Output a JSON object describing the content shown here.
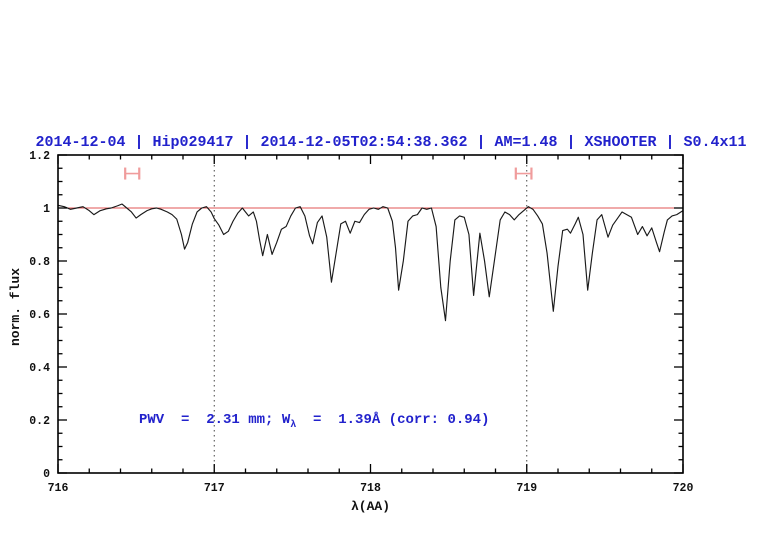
{
  "header": {
    "title": "2014-12-04 | Hip029417 | 2014-12-05T02:54:38.362 | AM=1.48 | XSHOOTER | S0.4x11"
  },
  "annotation": {
    "part1": "PWV  =  2.31 mm; W",
    "subscript": "λ",
    "part2": "  =  1.39Å (corr: 0.94)"
  },
  "colors": {
    "title_blue": "#2222cc",
    "continuum_red": "#e05555",
    "marker_pink": "#f09c9c",
    "spectrum_black": "#1a1a1a",
    "dotted_gray": "#444444",
    "frame_black": "#000000"
  },
  "chart_data": {
    "type": "line",
    "title": "2014-12-04 | Hip029417 | 2014-12-05T02:54:38.362 | AM=1.48 | XSHOOTER | S0.4x11",
    "xlabel": "λ(AA)",
    "ylabel": "norm. flux",
    "xlim": [
      716,
      720
    ],
    "ylim": [
      0,
      1.2
    ],
    "grid": false,
    "x_major_ticks": [
      716,
      717,
      718,
      719,
      720
    ],
    "x_tick_labels": [
      "716",
      "717",
      "718",
      "719",
      "720"
    ],
    "x_minor_step": 0.2,
    "y_major_ticks": [
      0,
      0.2,
      0.4,
      0.6,
      0.8,
      1,
      1.2
    ],
    "y_tick_labels": [
      "0",
      "0.2",
      "0.4",
      "0.6",
      "0.8",
      "1",
      "1.2"
    ],
    "y_minor_step": 0.05,
    "dotted_vlines": [
      717,
      719
    ],
    "continuum_level": 1.0,
    "telluric_band_markers": [
      {
        "x_start": 716.43,
        "x_end": 716.52,
        "y": 1.13
      },
      {
        "x_start": 718.93,
        "x_end": 719.03,
        "y": 1.13
      }
    ],
    "series": [
      {
        "name": "normalized-spectrum",
        "points": [
          [
            716.0,
            1.01
          ],
          [
            716.04,
            1.005
          ],
          [
            716.08,
            0.995
          ],
          [
            716.12,
            1.0
          ],
          [
            716.16,
            1.005
          ],
          [
            716.2,
            0.99
          ],
          [
            716.23,
            0.975
          ],
          [
            716.27,
            0.99
          ],
          [
            716.31,
            0.997
          ],
          [
            716.34,
            1.0
          ],
          [
            716.38,
            1.008
          ],
          [
            716.41,
            1.015
          ],
          [
            716.44,
            1.0
          ],
          [
            716.47,
            0.985
          ],
          [
            716.5,
            0.962
          ],
          [
            716.53,
            0.975
          ],
          [
            716.57,
            0.99
          ],
          [
            716.6,
            0.997
          ],
          [
            716.63,
            1.0
          ],
          [
            716.66,
            0.995
          ],
          [
            716.7,
            0.985
          ],
          [
            716.73,
            0.975
          ],
          [
            716.76,
            0.958
          ],
          [
            716.79,
            0.9
          ],
          [
            716.81,
            0.845
          ],
          [
            716.83,
            0.87
          ],
          [
            716.86,
            0.94
          ],
          [
            716.89,
            0.985
          ],
          [
            716.92,
            1.0
          ],
          [
            716.95,
            1.005
          ],
          [
            716.98,
            0.985
          ],
          [
            717.0,
            0.96
          ],
          [
            717.03,
            0.935
          ],
          [
            717.06,
            0.9
          ],
          [
            717.09,
            0.912
          ],
          [
            717.12,
            0.95
          ],
          [
            717.15,
            0.98
          ],
          [
            717.18,
            1.0
          ],
          [
            717.2,
            0.985
          ],
          [
            717.22,
            0.97
          ],
          [
            717.25,
            0.985
          ],
          [
            717.27,
            0.95
          ],
          [
            717.29,
            0.88
          ],
          [
            717.31,
            0.82
          ],
          [
            717.34,
            0.9
          ],
          [
            717.37,
            0.825
          ],
          [
            717.4,
            0.87
          ],
          [
            717.43,
            0.92
          ],
          [
            717.46,
            0.93
          ],
          [
            717.49,
            0.97
          ],
          [
            717.52,
            1.0
          ],
          [
            717.55,
            1.005
          ],
          [
            717.58,
            0.97
          ],
          [
            717.61,
            0.895
          ],
          [
            717.63,
            0.865
          ],
          [
            717.66,
            0.945
          ],
          [
            717.69,
            0.97
          ],
          [
            717.72,
            0.89
          ],
          [
            717.75,
            0.72
          ],
          [
            717.78,
            0.83
          ],
          [
            717.81,
            0.94
          ],
          [
            717.84,
            0.95
          ],
          [
            717.87,
            0.905
          ],
          [
            717.9,
            0.95
          ],
          [
            717.93,
            0.945
          ],
          [
            717.96,
            0.975
          ],
          [
            717.99,
            0.995
          ],
          [
            718.02,
            1.0
          ],
          [
            718.05,
            0.995
          ],
          [
            718.08,
            1.005
          ],
          [
            718.11,
            1.0
          ],
          [
            718.14,
            0.95
          ],
          [
            718.16,
            0.85
          ],
          [
            718.18,
            0.69
          ],
          [
            718.21,
            0.8
          ],
          [
            718.24,
            0.95
          ],
          [
            718.27,
            0.97
          ],
          [
            718.3,
            0.975
          ],
          [
            718.33,
            1.0
          ],
          [
            718.36,
            0.995
          ],
          [
            718.39,
            1.0
          ],
          [
            718.42,
            0.93
          ],
          [
            718.45,
            0.7
          ],
          [
            718.48,
            0.575
          ],
          [
            718.51,
            0.8
          ],
          [
            718.54,
            0.955
          ],
          [
            718.57,
            0.97
          ],
          [
            718.6,
            0.965
          ],
          [
            718.63,
            0.9
          ],
          [
            718.66,
            0.67
          ],
          [
            718.7,
            0.905
          ],
          [
            718.73,
            0.8
          ],
          [
            718.76,
            0.665
          ],
          [
            718.8,
            0.83
          ],
          [
            718.83,
            0.955
          ],
          [
            718.86,
            0.985
          ],
          [
            718.89,
            0.975
          ],
          [
            718.92,
            0.955
          ],
          [
            718.95,
            0.975
          ],
          [
            718.98,
            0.99
          ],
          [
            719.01,
            1.005
          ],
          [
            719.04,
            0.995
          ],
          [
            719.07,
            0.97
          ],
          [
            719.1,
            0.94
          ],
          [
            719.13,
            0.83
          ],
          [
            719.17,
            0.61
          ],
          [
            719.2,
            0.78
          ],
          [
            719.23,
            0.915
          ],
          [
            719.26,
            0.92
          ],
          [
            719.28,
            0.905
          ],
          [
            719.31,
            0.94
          ],
          [
            719.33,
            0.965
          ],
          [
            719.36,
            0.9
          ],
          [
            719.39,
            0.69
          ],
          [
            719.42,
            0.83
          ],
          [
            719.45,
            0.955
          ],
          [
            719.48,
            0.975
          ],
          [
            719.52,
            0.89
          ],
          [
            719.55,
            0.935
          ],
          [
            719.58,
            0.96
          ],
          [
            719.61,
            0.985
          ],
          [
            719.64,
            0.975
          ],
          [
            719.67,
            0.965
          ],
          [
            719.71,
            0.9
          ],
          [
            719.74,
            0.93
          ],
          [
            719.77,
            0.895
          ],
          [
            719.8,
            0.925
          ],
          [
            719.83,
            0.87
          ],
          [
            719.85,
            0.835
          ],
          [
            719.88,
            0.91
          ],
          [
            719.9,
            0.955
          ],
          [
            719.93,
            0.97
          ],
          [
            719.96,
            0.975
          ],
          [
            720.0,
            0.99
          ]
        ]
      }
    ]
  }
}
